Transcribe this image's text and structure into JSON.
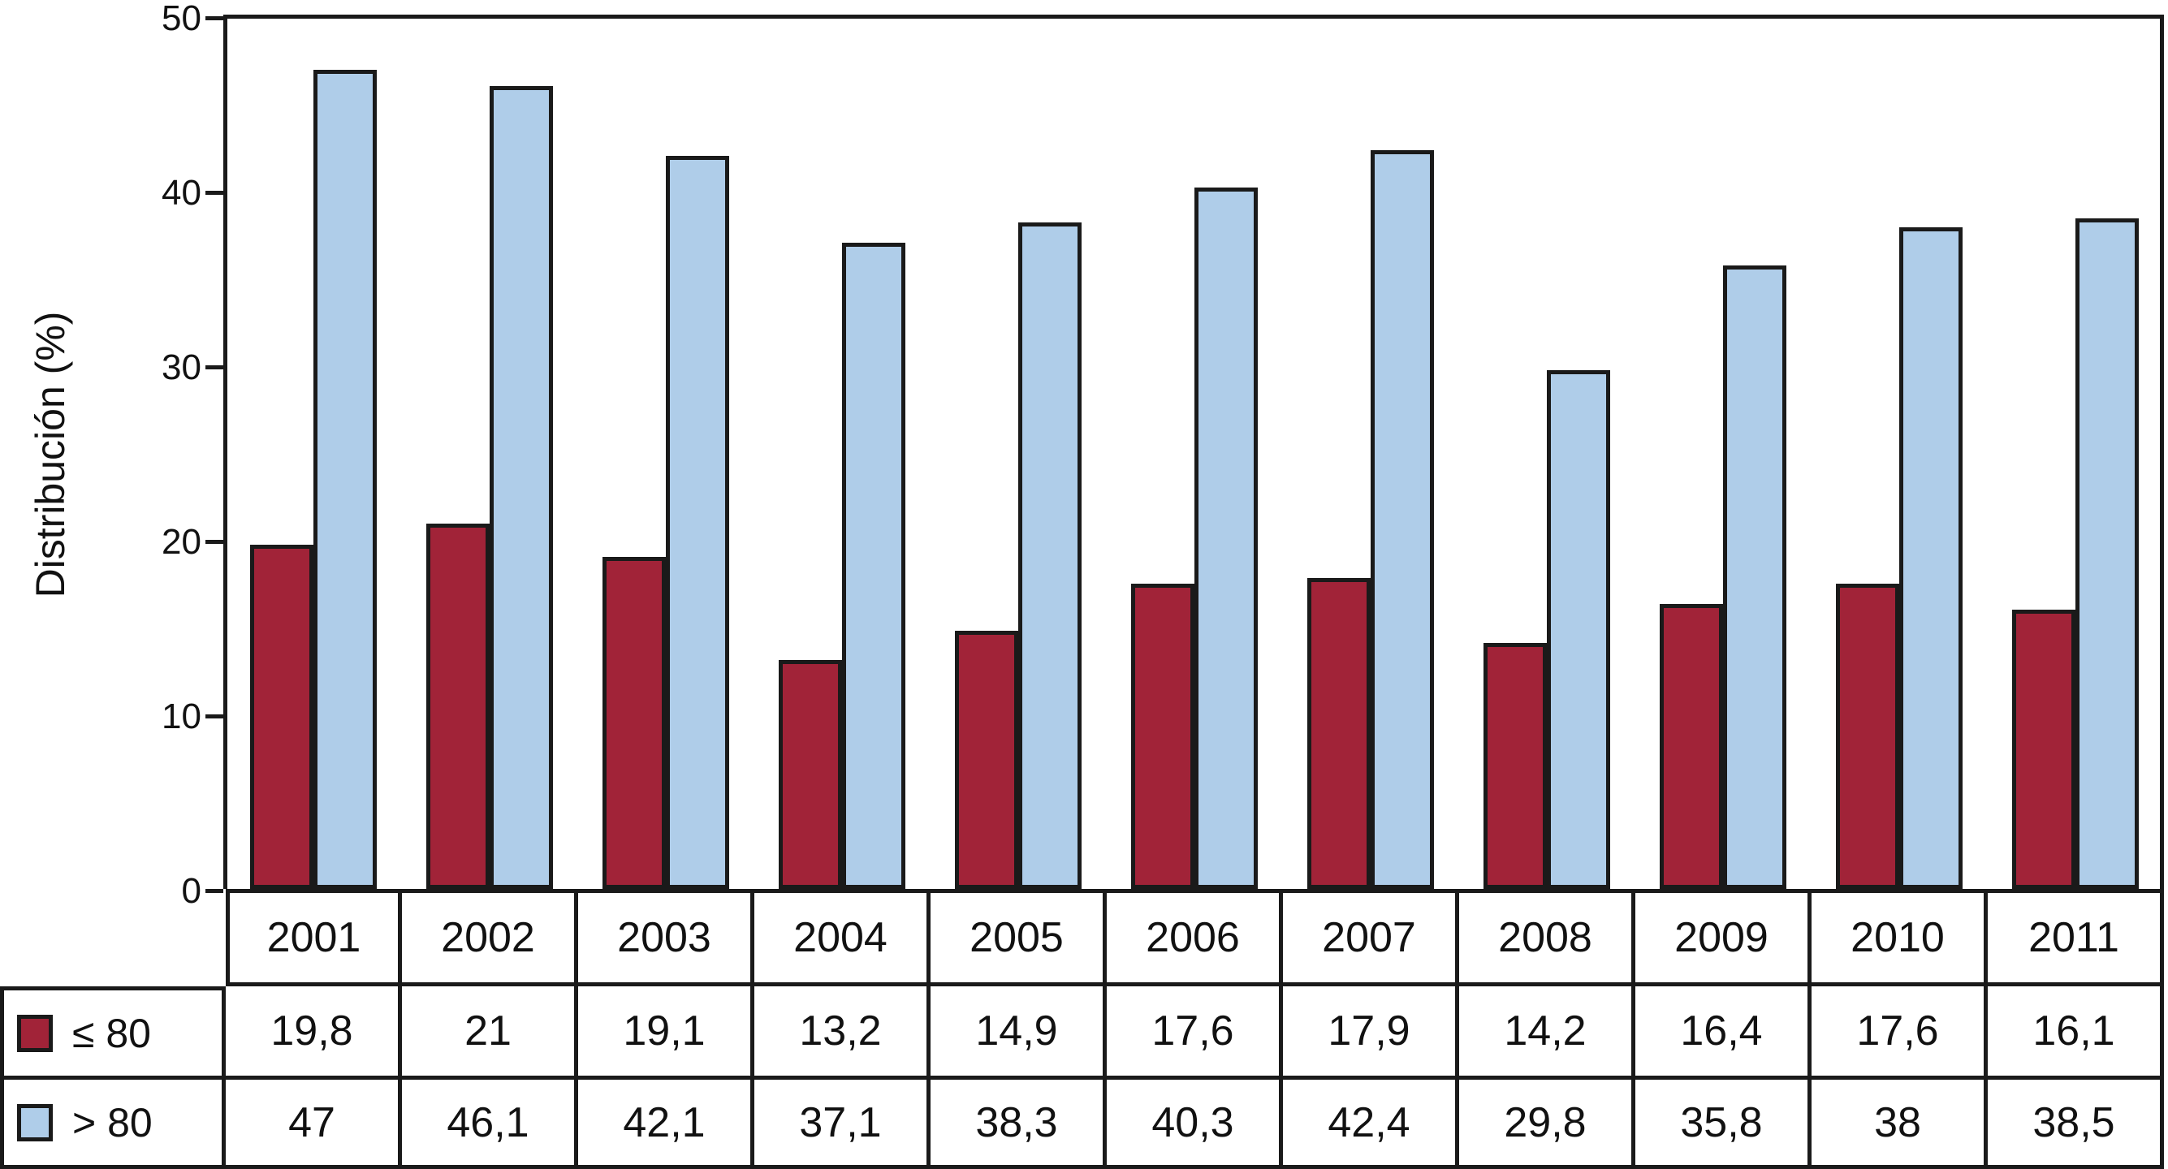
{
  "chart_data": {
    "type": "bar",
    "title": "",
    "xlabel": "",
    "ylabel": "Distribución (%)",
    "categories": [
      "2001",
      "2002",
      "2003",
      "2004",
      "2005",
      "2006",
      "2007",
      "2008",
      "2009",
      "2010",
      "2011"
    ],
    "series": [
      {
        "name": "≤ 80",
        "color": "#A12338",
        "values": [
          19.8,
          21,
          19.1,
          13.2,
          14.9,
          17.6,
          17.9,
          14.2,
          16.4,
          17.6,
          16.1
        ]
      },
      {
        "name": "> 80",
        "color": "#AFCDE9",
        "values": [
          47,
          46.1,
          42.1,
          37.1,
          38.3,
          40.3,
          42.4,
          29.8,
          35.8,
          38,
          38.5
        ]
      }
    ],
    "ylim": [
      0,
      50
    ],
    "yticks": [
      0,
      10,
      20,
      30,
      40,
      50
    ],
    "grid": false,
    "bar_border_color": "#1a1a1a",
    "legend_position": "table rows below chart",
    "value_format": "decimal-comma"
  }
}
